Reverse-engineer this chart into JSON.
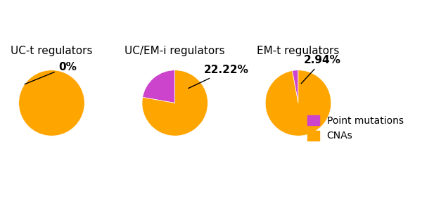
{
  "charts": [
    {
      "title": "UC-t regulators",
      "point_mutations_pct": 0.0,
      "cnas_pct": 100.0,
      "label": "0%"
    },
    {
      "title": "UC/EM-i regulators",
      "point_mutations_pct": 22.22,
      "cnas_pct": 77.78,
      "label": "22.22%"
    },
    {
      "title": "EM-t regulators",
      "point_mutations_pct": 2.94,
      "cnas_pct": 97.06,
      "label": "2.94%"
    }
  ],
  "color_point_mutations": "#CC44CC",
  "color_cnas": "#FFA500",
  "legend_labels": [
    "Point mutations",
    "CNAs"
  ],
  "background_color": "#ffffff",
  "startangle": 90,
  "label_color": "black",
  "label_fontsize": 11,
  "title_fontsize": 11
}
